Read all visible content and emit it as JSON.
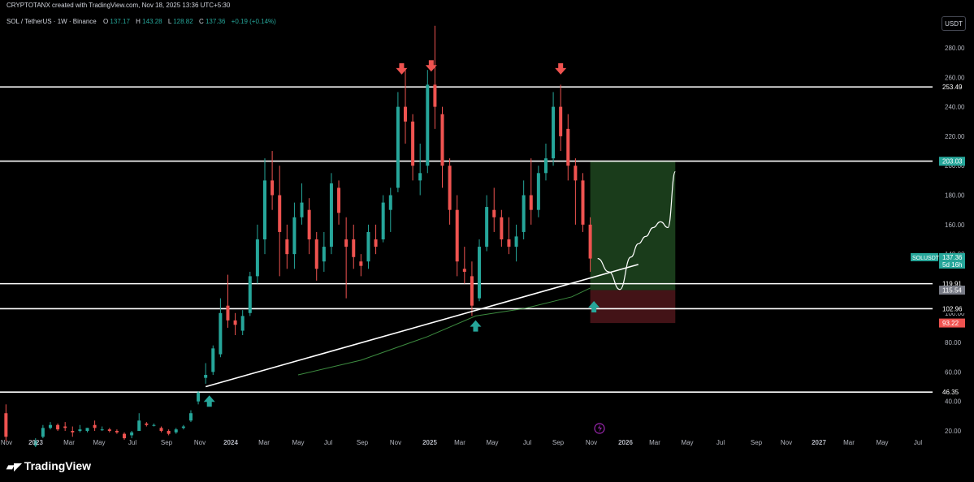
{
  "header": {
    "attribution": "CRYPTOTANX created with TradingView.com, Nov 18, 2025 13:36 UTC+5:30"
  },
  "legend": {
    "symbol": "SOL / TetherUS · 1W · Binance",
    "open_label": "O",
    "open": "137.17",
    "high_label": "H",
    "high": "143.28",
    "low_label": "L",
    "low": "128.82",
    "close_label": "C",
    "close": "137.36",
    "change": "+0.19 (+0.14%)"
  },
  "currency_button": "USDT",
  "brand": "TradingView",
  "colors": {
    "background": "#000000",
    "up": "#26a69a",
    "down": "#ef5350",
    "profit_zone": "#1e4620",
    "loss_zone": "#4a1519",
    "ma_line": "#4caf50"
  },
  "chart_data": {
    "type": "candlestick",
    "interval": "1W",
    "ylim": [
      15,
      305
    ],
    "y_ticks": [
      "20.00",
      "40.00",
      "60.00",
      "80.00",
      "100.00",
      "120.00",
      "140.00",
      "160.00",
      "180.00",
      "200.00",
      "220.00",
      "240.00",
      "260.00",
      "280.00"
    ],
    "x_ticks": [
      "Nov",
      "2023",
      "Mar",
      "May",
      "Jul",
      "Sep",
      "Nov",
      "2024",
      "Mar",
      "May",
      "Jul",
      "Sep",
      "Nov",
      "2025",
      "Mar",
      "May",
      "Jul",
      "Sep",
      "Nov",
      "2026",
      "Mar",
      "May",
      "Jul",
      "Sep",
      "Nov",
      "2027",
      "Mar",
      "May",
      "Jul"
    ],
    "horizontal_levels": [
      {
        "value": 253.49,
        "label": "253.49"
      },
      {
        "value": 203.1,
        "label": "203.10"
      },
      {
        "value": 119.91,
        "label": "119.91"
      },
      {
        "value": 102.96,
        "label": "102.96"
      },
      {
        "value": 46.35,
        "label": "46.35"
      }
    ],
    "price_tags": [
      {
        "value": 203.03,
        "label": "203.03",
        "kind": "target"
      },
      {
        "value": 115.54,
        "label": "115.54",
        "kind": "entry"
      },
      {
        "value": 93.22,
        "label": "93.22",
        "kind": "stop"
      }
    ],
    "current_price": {
      "symbol": "SOLUSDT",
      "value": 137.36,
      "label": "137.36",
      "countdown": "5d 16h"
    },
    "trendline": [
      {
        "x": "2023-11-13",
        "y": 50
      },
      {
        "x": "2026-02-09",
        "y": 133
      }
    ],
    "position": {
      "entry": 115.54,
      "target": 203.03,
      "stop": 93.22,
      "from": "2025-11-10",
      "to": "2026-04-20"
    },
    "projection": [
      {
        "x": "2025-11-24",
        "y": 137
      },
      {
        "x": "2025-12-15",
        "y": 128
      },
      {
        "x": "2026-01-05",
        "y": 116
      },
      {
        "x": "2026-01-26",
        "y": 138
      },
      {
        "x": "2026-02-09",
        "y": 147
      },
      {
        "x": "2026-02-23",
        "y": 152
      },
      {
        "x": "2026-03-09",
        "y": 158
      },
      {
        "x": "2026-03-23",
        "y": 162
      },
      {
        "x": "2026-04-06",
        "y": 158
      },
      {
        "x": "2026-04-20",
        "y": 196
      }
    ],
    "moving_average": [
      {
        "x": "2024-05-06",
        "y": 58
      },
      {
        "x": "2024-09-02",
        "y": 68
      },
      {
        "x": "2025-01-06",
        "y": 84
      },
      {
        "x": "2025-04-07",
        "y": 98
      },
      {
        "x": "2025-07-07",
        "y": 103
      },
      {
        "x": "2025-10-06",
        "y": 111
      },
      {
        "x": "2025-11-10",
        "y": 117
      }
    ],
    "down_arrows": [
      {
        "x": "2024-11-18",
        "y": 263
      },
      {
        "x": "2025-01-13",
        "y": 265
      },
      {
        "x": "2025-09-15",
        "y": 263
      }
    ],
    "up_arrows": [
      {
        "x": "2023-11-20",
        "y": 43
      },
      {
        "x": "2025-04-07",
        "y": 94
      },
      {
        "x": "2025-11-17",
        "y": 107
      }
    ],
    "candles": [
      {
        "t": "2022-10-31",
        "o": 32,
        "h": 38,
        "l": 13,
        "c": 16
      },
      {
        "t": "2022-12-26",
        "o": 10,
        "h": 15,
        "l": 9,
        "c": 13
      },
      {
        "t": "2023-01-09",
        "o": 16,
        "h": 24,
        "l": 15,
        "c": 22
      },
      {
        "t": "2023-01-23",
        "o": 22,
        "h": 26,
        "l": 21,
        "c": 24
      },
      {
        "t": "2023-02-06",
        "o": 24,
        "h": 25,
        "l": 20,
        "c": 21
      },
      {
        "t": "2023-02-20",
        "o": 23,
        "h": 26,
        "l": 20,
        "c": 22
      },
      {
        "t": "2023-03-06",
        "o": 20,
        "h": 23,
        "l": 16,
        "c": 19
      },
      {
        "t": "2023-03-20",
        "o": 20,
        "h": 24,
        "l": 19,
        "c": 21
      },
      {
        "t": "2023-04-03",
        "o": 20,
        "h": 22,
        "l": 19,
        "c": 22
      },
      {
        "t": "2023-04-17",
        "o": 24,
        "h": 27,
        "l": 20,
        "c": 22
      },
      {
        "t": "2023-05-01",
        "o": 21,
        "h": 23,
        "l": 20,
        "c": 21
      },
      {
        "t": "2023-05-15",
        "o": 21,
        "h": 22,
        "l": 19,
        "c": 20
      },
      {
        "t": "2023-05-29",
        "o": 20,
        "h": 21,
        "l": 18,
        "c": 19
      },
      {
        "t": "2023-06-12",
        "o": 18,
        "h": 19,
        "l": 14,
        "c": 15
      },
      {
        "t": "2023-06-26",
        "o": 17,
        "h": 20,
        "l": 15,
        "c": 19
      },
      {
        "t": "2023-07-10",
        "o": 20,
        "h": 32,
        "l": 20,
        "c": 27
      },
      {
        "t": "2023-07-24",
        "o": 25,
        "h": 26,
        "l": 23,
        "c": 24
      },
      {
        "t": "2023-08-07",
        "o": 24,
        "h": 25,
        "l": 23,
        "c": 24
      },
      {
        "t": "2023-08-21",
        "o": 22,
        "h": 23,
        "l": 19,
        "c": 20
      },
      {
        "t": "2023-09-04",
        "o": 20,
        "h": 21,
        "l": 17,
        "c": 18
      },
      {
        "t": "2023-09-18",
        "o": 19,
        "h": 22,
        "l": 18,
        "c": 21
      },
      {
        "t": "2023-10-02",
        "o": 22,
        "h": 24,
        "l": 21,
        "c": 23
      },
      {
        "t": "2023-10-16",
        "o": 27,
        "h": 34,
        "l": 26,
        "c": 32
      },
      {
        "t": "2023-10-30",
        "o": 40,
        "h": 47,
        "l": 38,
        "c": 46
      },
      {
        "t": "2023-11-13",
        "o": 56,
        "h": 66,
        "l": 52,
        "c": 58
      },
      {
        "t": "2023-11-27",
        "o": 60,
        "h": 78,
        "l": 58,
        "c": 76
      },
      {
        "t": "2023-12-11",
        "o": 72,
        "h": 110,
        "l": 70,
        "c": 100
      },
      {
        "t": "2023-12-25",
        "o": 105,
        "h": 126,
        "l": 90,
        "c": 95
      },
      {
        "t": "2024-01-08",
        "o": 95,
        "h": 100,
        "l": 85,
        "c": 92
      },
      {
        "t": "2024-01-22",
        "o": 88,
        "h": 102,
        "l": 85,
        "c": 98
      },
      {
        "t": "2024-02-05",
        "o": 100,
        "h": 128,
        "l": 98,
        "c": 125
      },
      {
        "t": "2024-02-19",
        "o": 125,
        "h": 160,
        "l": 120,
        "c": 150
      },
      {
        "t": "2024-03-04",
        "o": 150,
        "h": 205,
        "l": 140,
        "c": 190
      },
      {
        "t": "2024-03-18",
        "o": 190,
        "h": 210,
        "l": 170,
        "c": 180
      },
      {
        "t": "2024-04-01",
        "o": 180,
        "h": 200,
        "l": 125,
        "c": 155
      },
      {
        "t": "2024-04-15",
        "o": 150,
        "h": 160,
        "l": 130,
        "c": 140
      },
      {
        "t": "2024-04-29",
        "o": 140,
        "h": 175,
        "l": 130,
        "c": 165
      },
      {
        "t": "2024-05-13",
        "o": 165,
        "h": 188,
        "l": 160,
        "c": 175
      },
      {
        "t": "2024-05-27",
        "o": 170,
        "h": 178,
        "l": 140,
        "c": 150
      },
      {
        "t": "2024-06-10",
        "o": 150,
        "h": 155,
        "l": 122,
        "c": 130
      },
      {
        "t": "2024-06-24",
        "o": 135,
        "h": 155,
        "l": 128,
        "c": 145
      },
      {
        "t": "2024-07-08",
        "o": 145,
        "h": 195,
        "l": 140,
        "c": 188
      },
      {
        "t": "2024-07-22",
        "o": 185,
        "h": 190,
        "l": 160,
        "c": 168
      },
      {
        "t": "2024-08-05",
        "o": 150,
        "h": 165,
        "l": 110,
        "c": 145
      },
      {
        "t": "2024-08-19",
        "o": 150,
        "h": 160,
        "l": 130,
        "c": 138
      },
      {
        "t": "2024-09-02",
        "o": 135,
        "h": 140,
        "l": 125,
        "c": 132
      },
      {
        "t": "2024-09-16",
        "o": 135,
        "h": 160,
        "l": 130,
        "c": 155
      },
      {
        "t": "2024-09-30",
        "o": 150,
        "h": 160,
        "l": 140,
        "c": 145
      },
      {
        "t": "2024-10-14",
        "o": 150,
        "h": 180,
        "l": 148,
        "c": 175
      },
      {
        "t": "2024-10-28",
        "o": 170,
        "h": 185,
        "l": 155,
        "c": 180
      },
      {
        "t": "2024-11-11",
        "o": 185,
        "h": 250,
        "l": 182,
        "c": 240
      },
      {
        "t": "2024-11-25",
        "o": 240,
        "h": 265,
        "l": 215,
        "c": 230
      },
      {
        "t": "2024-12-09",
        "o": 230,
        "h": 235,
        "l": 190,
        "c": 200
      },
      {
        "t": "2024-12-23",
        "o": 190,
        "h": 215,
        "l": 180,
        "c": 195
      },
      {
        "t": "2025-01-06",
        "o": 200,
        "h": 265,
        "l": 195,
        "c": 255
      },
      {
        "t": "2025-01-20",
        "o": 255,
        "h": 295,
        "l": 225,
        "c": 240
      },
      {
        "t": "2025-02-03",
        "o": 235,
        "h": 240,
        "l": 185,
        "c": 200
      },
      {
        "t": "2025-02-17",
        "o": 200,
        "h": 205,
        "l": 160,
        "c": 170
      },
      {
        "t": "2025-03-03",
        "o": 170,
        "h": 180,
        "l": 125,
        "c": 135
      },
      {
        "t": "2025-03-17",
        "o": 130,
        "h": 145,
        "l": 120,
        "c": 128
      },
      {
        "t": "2025-03-31",
        "o": 125,
        "h": 135,
        "l": 98,
        "c": 105
      },
      {
        "t": "2025-04-14",
        "o": 110,
        "h": 150,
        "l": 108,
        "c": 145
      },
      {
        "t": "2025-04-28",
        "o": 145,
        "h": 180,
        "l": 142,
        "c": 172
      },
      {
        "t": "2025-05-12",
        "o": 170,
        "h": 185,
        "l": 155,
        "c": 165
      },
      {
        "t": "2025-05-26",
        "o": 165,
        "h": 170,
        "l": 145,
        "c": 150
      },
      {
        "t": "2025-06-09",
        "o": 150,
        "h": 165,
        "l": 140,
        "c": 145
      },
      {
        "t": "2025-06-23",
        "o": 145,
        "h": 160,
        "l": 135,
        "c": 152
      },
      {
        "t": "2025-07-07",
        "o": 155,
        "h": 190,
        "l": 150,
        "c": 180
      },
      {
        "t": "2025-07-21",
        "o": 180,
        "h": 205,
        "l": 160,
        "c": 170
      },
      {
        "t": "2025-08-04",
        "o": 170,
        "h": 200,
        "l": 165,
        "c": 195
      },
      {
        "t": "2025-08-18",
        "o": 195,
        "h": 215,
        "l": 190,
        "c": 205
      },
      {
        "t": "2025-09-01",
        "o": 205,
        "h": 250,
        "l": 200,
        "c": 240
      },
      {
        "t": "2025-09-15",
        "o": 240,
        "h": 255,
        "l": 210,
        "c": 220
      },
      {
        "t": "2025-09-29",
        "o": 225,
        "h": 235,
        "l": 190,
        "c": 200
      },
      {
        "t": "2025-10-13",
        "o": 200,
        "h": 205,
        "l": 160,
        "c": 190
      },
      {
        "t": "2025-10-27",
        "o": 190,
        "h": 195,
        "l": 155,
        "c": 160
      },
      {
        "t": "2025-11-10",
        "o": 160,
        "h": 165,
        "l": 128,
        "c": 137
      }
    ]
  }
}
